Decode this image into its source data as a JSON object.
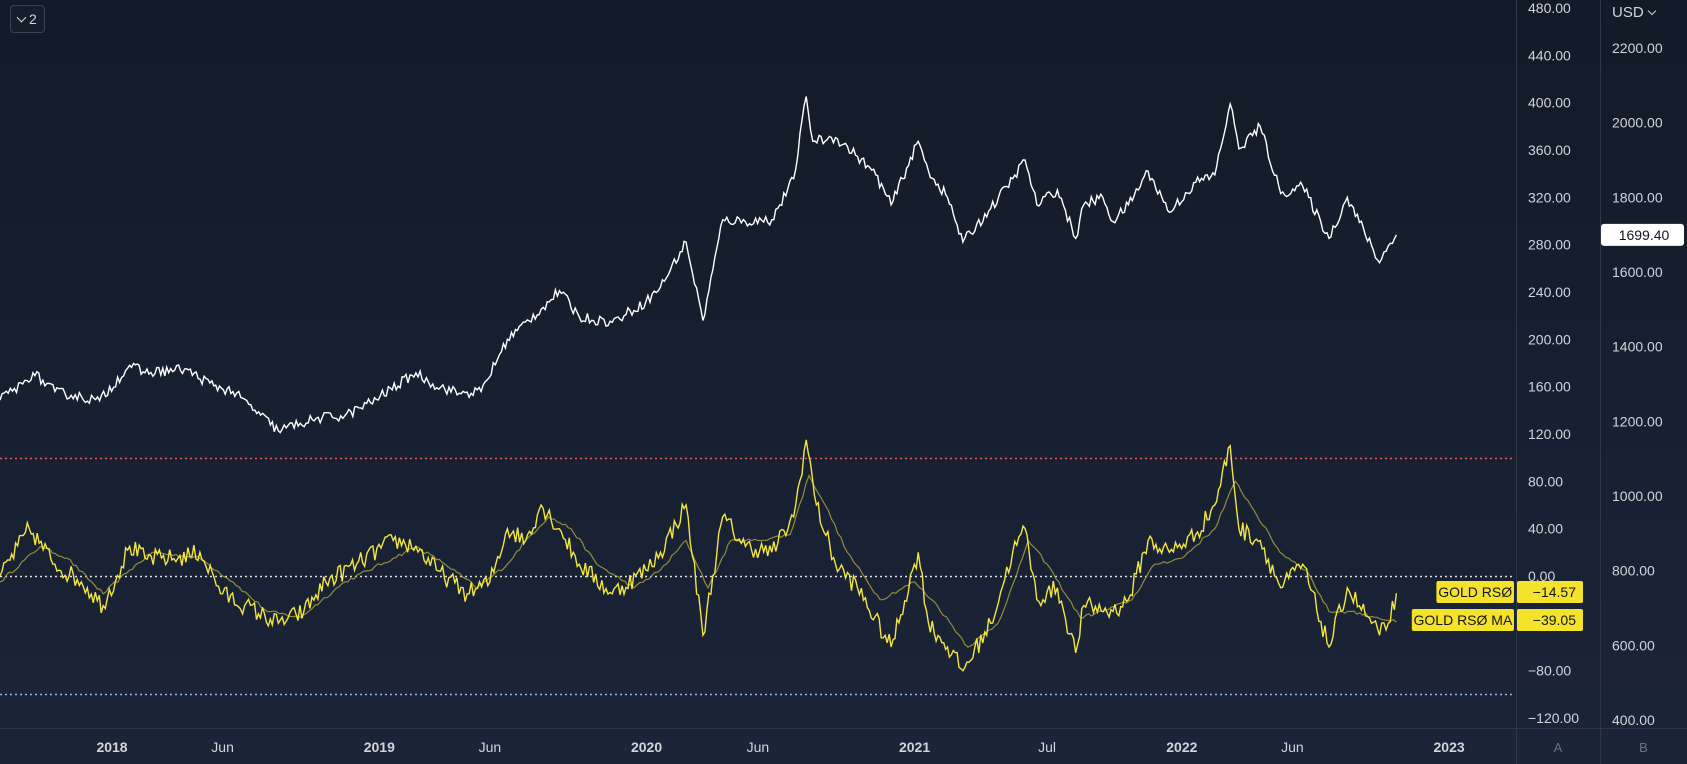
{
  "toolbar": {
    "legend_count": "2"
  },
  "currency_label": "USD",
  "colors": {
    "background": "#131a27",
    "price_line": "#ffffff",
    "rsi_line": "#f2e641",
    "rsi_ma_line": "#a79e3c",
    "overbought_line": "#e25a5a",
    "zero_line": "#e0e0e0",
    "oversold_line": "#90b8f8",
    "label_bg": "#f5e22a",
    "axis_text": "#d1d4dc",
    "divider": "#2e3648"
  },
  "chart_data": {
    "type": "line",
    "x_ticks": [
      "2018",
      "Jun",
      "2019",
      "Jun",
      "2020",
      "Jun",
      "2021",
      "Jul",
      "2022",
      "Jun",
      "2023"
    ],
    "x_tick_dates": [
      "2018-01-01",
      "2018-06-01",
      "2019-01-01",
      "2019-06-01",
      "2020-01-01",
      "2020-06-01",
      "2021-01-01",
      "2021-07-01",
      "2022-01-01",
      "2022-06-01",
      "2023-01-01"
    ],
    "x_range": [
      "2017-08-01",
      "2023-04-01"
    ],
    "pane_labels": [
      "A",
      "B"
    ],
    "axis_A": {
      "range": [
        -120,
        480
      ],
      "ticks": [
        "480.00",
        "440.00",
        "400.00",
        "360.00",
        "320.00",
        "280.00",
        "240.00",
        "200.00",
        "160.00",
        "120.00",
        "80.00",
        "40.00",
        "0.00",
        "−80.00",
        "−120.00"
      ],
      "tick_values": [
        480,
        440,
        400,
        360,
        320,
        280,
        240,
        200,
        160,
        120,
        80,
        40,
        0,
        -80,
        -120
      ]
    },
    "axis_B": {
      "range": [
        400,
        2200
      ],
      "currency": "USD",
      "ticks": [
        "2200.00",
        "2000.00",
        "1800.00",
        "1600.00",
        "1400.00",
        "1200.00",
        "1000.00",
        "800.00",
        "600.00",
        "400.00"
      ],
      "tick_values": [
        2200,
        2000,
        1800,
        1600,
        1400,
        1200,
        1000,
        800,
        600,
        400
      ]
    },
    "levels": [
      {
        "value": 100,
        "axis": "A",
        "style": "dotted",
        "color": "#e25a5a"
      },
      {
        "value": 0,
        "axis": "A",
        "style": "dotted",
        "color": "#e0e0e0"
      },
      {
        "value": -100,
        "axis": "A",
        "style": "dotted",
        "color": "#90b8f8"
      }
    ],
    "series": [
      {
        "key": "price",
        "axis": "B",
        "color": "#ffffff",
        "last_value": "1699.40",
        "points": [
          [
            "2017-08-01",
            1257
          ],
          [
            "2017-09-01",
            1300
          ],
          [
            "2017-09-15",
            1330
          ],
          [
            "2017-10-15",
            1280
          ],
          [
            "2017-12-15",
            1255
          ],
          [
            "2018-01-25",
            1350
          ],
          [
            "2018-02-15",
            1330
          ],
          [
            "2018-04-10",
            1340
          ],
          [
            "2018-05-20",
            1295
          ],
          [
            "2018-06-15",
            1280
          ],
          [
            "2018-07-15",
            1230
          ],
          [
            "2018-08-16",
            1175
          ],
          [
            "2018-09-15",
            1195
          ],
          [
            "2018-10-15",
            1210
          ],
          [
            "2018-11-15",
            1215
          ],
          [
            "2018-12-20",
            1250
          ],
          [
            "2019-02-20",
            1330
          ],
          [
            "2019-03-15",
            1300
          ],
          [
            "2019-04-20",
            1275
          ],
          [
            "2019-05-20",
            1280
          ],
          [
            "2019-06-25",
            1420
          ],
          [
            "2019-08-10",
            1500
          ],
          [
            "2019-09-04",
            1550
          ],
          [
            "2019-10-01",
            1480
          ],
          [
            "2019-11-15",
            1465
          ],
          [
            "2019-12-31",
            1520
          ],
          [
            "2020-01-20",
            1560
          ],
          [
            "2020-02-24",
            1680
          ],
          [
            "2020-03-18",
            1470
          ],
          [
            "2020-04-14",
            1740
          ],
          [
            "2020-05-15",
            1735
          ],
          [
            "2020-06-20",
            1740
          ],
          [
            "2020-07-20",
            1850
          ],
          [
            "2020-08-06",
            2070
          ],
          [
            "2020-08-15",
            1950
          ],
          [
            "2020-09-15",
            1960
          ],
          [
            "2020-10-15",
            1910
          ],
          [
            "2020-11-09",
            1860
          ],
          [
            "2020-11-30",
            1780
          ],
          [
            "2021-01-06",
            1950
          ],
          [
            "2021-01-20",
            1870
          ],
          [
            "2021-02-15",
            1800
          ],
          [
            "2021-03-08",
            1680
          ],
          [
            "2021-04-15",
            1770
          ],
          [
            "2021-05-15",
            1850
          ],
          [
            "2021-06-01",
            1900
          ],
          [
            "2021-06-17",
            1780
          ],
          [
            "2021-07-15",
            1820
          ],
          [
            "2021-08-09",
            1690
          ],
          [
            "2021-08-20",
            1780
          ],
          [
            "2021-09-15",
            1800
          ],
          [
            "2021-09-29",
            1735
          ],
          [
            "2021-10-20",
            1780
          ],
          [
            "2021-11-16",
            1870
          ],
          [
            "2021-12-15",
            1760
          ],
          [
            "2022-01-20",
            1840
          ],
          [
            "2022-02-15",
            1860
          ],
          [
            "2022-03-08",
            2050
          ],
          [
            "2022-03-20",
            1930
          ],
          [
            "2022-04-18",
            1990
          ],
          [
            "2022-05-16",
            1810
          ],
          [
            "2022-06-15",
            1830
          ],
          [
            "2022-07-21",
            1690
          ],
          [
            "2022-08-15",
            1800
          ],
          [
            "2022-09-28",
            1625
          ],
          [
            "2022-10-10",
            1670
          ],
          [
            "2022-10-21",
            1699.4
          ]
        ]
      },
      {
        "key": "rsi",
        "axis": "A",
        "name": "GOLD RSØ",
        "color": "#f2e641",
        "last_value": "−14.57",
        "points": [
          [
            "2017-08-01",
            0
          ],
          [
            "2017-09-10",
            40
          ],
          [
            "2017-10-15",
            10
          ],
          [
            "2017-11-20",
            -5
          ],
          [
            "2017-12-20",
            -25
          ],
          [
            "2018-01-25",
            25
          ],
          [
            "2018-02-15",
            15
          ],
          [
            "2018-04-01",
            15
          ],
          [
            "2018-05-01",
            20
          ],
          [
            "2018-06-01",
            -15
          ],
          [
            "2018-07-01",
            -25
          ],
          [
            "2018-08-16",
            -40
          ],
          [
            "2018-09-20",
            -30
          ],
          [
            "2018-10-20",
            -5
          ],
          [
            "2018-12-01",
            10
          ],
          [
            "2019-01-20",
            30
          ],
          [
            "2019-02-20",
            25
          ],
          [
            "2019-03-20",
            5
          ],
          [
            "2019-05-01",
            -15
          ],
          [
            "2019-06-01",
            -5
          ],
          [
            "2019-06-25",
            40
          ],
          [
            "2019-07-20",
            30
          ],
          [
            "2019-08-10",
            60
          ],
          [
            "2019-09-04",
            40
          ],
          [
            "2019-10-01",
            10
          ],
          [
            "2019-11-15",
            -15
          ],
          [
            "2019-12-31",
            5
          ],
          [
            "2020-01-20",
            20
          ],
          [
            "2020-02-24",
            60
          ],
          [
            "2020-03-18",
            -50
          ],
          [
            "2020-04-14",
            50
          ],
          [
            "2020-05-15",
            25
          ],
          [
            "2020-06-20",
            20
          ],
          [
            "2020-07-20",
            50
          ],
          [
            "2020-08-06",
            115
          ],
          [
            "2020-08-20",
            60
          ],
          [
            "2020-09-15",
            10
          ],
          [
            "2020-10-15",
            -10
          ],
          [
            "2020-11-30",
            -60
          ],
          [
            "2021-01-06",
            20
          ],
          [
            "2021-01-20",
            -40
          ],
          [
            "2021-02-15",
            -60
          ],
          [
            "2021-03-08",
            -80
          ],
          [
            "2021-04-15",
            -40
          ],
          [
            "2021-05-15",
            20
          ],
          [
            "2021-06-01",
            40
          ],
          [
            "2021-06-17",
            -20
          ],
          [
            "2021-07-15",
            -10
          ],
          [
            "2021-08-09",
            -65
          ],
          [
            "2021-08-20",
            -25
          ],
          [
            "2021-09-29",
            -30
          ],
          [
            "2021-10-20",
            -20
          ],
          [
            "2021-11-16",
            30
          ],
          [
            "2021-12-15",
            20
          ],
          [
            "2022-01-20",
            35
          ],
          [
            "2022-02-15",
            60
          ],
          [
            "2022-03-08",
            110
          ],
          [
            "2022-03-20",
            40
          ],
          [
            "2022-04-18",
            30
          ],
          [
            "2022-05-16",
            -10
          ],
          [
            "2022-06-15",
            10
          ],
          [
            "2022-07-21",
            -60
          ],
          [
            "2022-08-15",
            -10
          ],
          [
            "2022-09-28",
            -50
          ],
          [
            "2022-10-10",
            -40
          ],
          [
            "2022-10-21",
            -14.57
          ]
        ]
      },
      {
        "key": "rsi_ma",
        "axis": "A",
        "name": "GOLD RSØ MA",
        "color": "#a79e3c",
        "last_value": "−39.05",
        "points": [
          [
            "2017-08-01",
            -5
          ],
          [
            "2017-09-25",
            25
          ],
          [
            "2017-11-01",
            15
          ],
          [
            "2017-12-20",
            -15
          ],
          [
            "2018-01-25",
            5
          ],
          [
            "2018-02-25",
            20
          ],
          [
            "2018-05-01",
            15
          ],
          [
            "2018-06-15",
            -5
          ],
          [
            "2018-08-01",
            -30
          ],
          [
            "2018-09-15",
            -35
          ],
          [
            "2018-11-15",
            -5
          ],
          [
            "2019-01-20",
            15
          ],
          [
            "2019-02-20",
            25
          ],
          [
            "2019-04-01",
            10
          ],
          [
            "2019-05-15",
            -10
          ],
          [
            "2019-06-25",
            10
          ],
          [
            "2019-07-20",
            30
          ],
          [
            "2019-08-20",
            50
          ],
          [
            "2019-09-20",
            40
          ],
          [
            "2019-10-25",
            10
          ],
          [
            "2019-12-15",
            -10
          ],
          [
            "2020-01-20",
            5
          ],
          [
            "2020-02-24",
            30
          ],
          [
            "2020-03-25",
            -10
          ],
          [
            "2020-04-25",
            30
          ],
          [
            "2020-06-01",
            30
          ],
          [
            "2020-07-15",
            35
          ],
          [
            "2020-08-10",
            85
          ],
          [
            "2020-09-01",
            60
          ],
          [
            "2020-10-01",
            20
          ],
          [
            "2020-11-15",
            -20
          ],
          [
            "2021-01-01",
            -5
          ],
          [
            "2021-02-01",
            -25
          ],
          [
            "2021-03-15",
            -60
          ],
          [
            "2021-04-25",
            -40
          ],
          [
            "2021-05-20",
            0
          ],
          [
            "2021-06-05",
            30
          ],
          [
            "2021-07-01",
            10
          ],
          [
            "2021-08-15",
            -35
          ],
          [
            "2021-09-15",
            -30
          ],
          [
            "2021-10-25",
            -20
          ],
          [
            "2021-11-25",
            10
          ],
          [
            "2022-01-01",
            15
          ],
          [
            "2022-02-15",
            40
          ],
          [
            "2022-03-15",
            80
          ],
          [
            "2022-04-10",
            55
          ],
          [
            "2022-05-15",
            20
          ],
          [
            "2022-06-20",
            5
          ],
          [
            "2022-07-21",
            -30
          ],
          [
            "2022-08-20",
            -30
          ],
          [
            "2022-09-25",
            -35
          ],
          [
            "2022-10-21",
            -39.05
          ]
        ]
      }
    ]
  }
}
